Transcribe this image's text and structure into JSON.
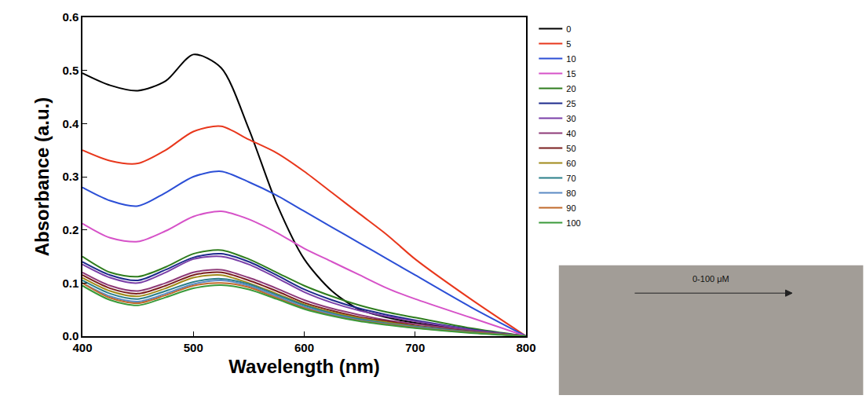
{
  "chart_data": {
    "type": "line",
    "x_label": "Wavelength (nm)",
    "y_label": "Absorbance (a.u.)",
    "x": [
      400,
      425,
      450,
      475,
      500,
      525,
      550,
      575,
      600,
      625,
      650,
      675,
      700,
      750,
      800
    ],
    "series": [
      {
        "name": "0",
        "color": "#000000",
        "values": [
          0.495,
          0.472,
          0.462,
          0.48,
          0.53,
          0.505,
          0.39,
          0.25,
          0.145,
          0.085,
          0.05,
          0.035,
          0.025,
          0.012,
          0.0
        ]
      },
      {
        "name": "5",
        "color": "#e8371c",
        "values": [
          0.35,
          0.33,
          0.325,
          0.35,
          0.385,
          0.395,
          0.37,
          0.345,
          0.31,
          0.27,
          0.23,
          0.19,
          0.145,
          0.07,
          0.0
        ]
      },
      {
        "name": "10",
        "color": "#2c4fd6",
        "values": [
          0.28,
          0.255,
          0.245,
          0.27,
          0.3,
          0.31,
          0.29,
          0.265,
          0.235,
          0.205,
          0.175,
          0.145,
          0.115,
          0.055,
          0.0
        ]
      },
      {
        "name": "15",
        "color": "#d652c8",
        "values": [
          0.212,
          0.185,
          0.178,
          0.198,
          0.225,
          0.235,
          0.22,
          0.195,
          0.165,
          0.14,
          0.115,
          0.09,
          0.07,
          0.035,
          0.0
        ]
      },
      {
        "name": "20",
        "color": "#2f7d1e",
        "values": [
          0.15,
          0.12,
          0.112,
          0.13,
          0.155,
          0.162,
          0.145,
          0.12,
          0.095,
          0.075,
          0.058,
          0.045,
          0.035,
          0.015,
          0.0
        ]
      },
      {
        "name": "25",
        "color": "#1d2a8c",
        "values": [
          0.14,
          0.115,
          0.105,
          0.125,
          0.148,
          0.155,
          0.14,
          0.115,
          0.088,
          0.068,
          0.052,
          0.04,
          0.03,
          0.013,
          0.0
        ]
      },
      {
        "name": "30",
        "color": "#7a3fa8",
        "values": [
          0.135,
          0.11,
          0.1,
          0.12,
          0.145,
          0.15,
          0.135,
          0.11,
          0.083,
          0.063,
          0.048,
          0.037,
          0.028,
          0.012,
          0.0
        ]
      },
      {
        "name": "40",
        "color": "#8e3a78",
        "values": [
          0.12,
          0.095,
          0.085,
          0.1,
          0.12,
          0.125,
          0.11,
          0.09,
          0.068,
          0.052,
          0.04,
          0.03,
          0.023,
          0.01,
          0.0
        ]
      },
      {
        "name": "50",
        "color": "#7a1f1f",
        "values": [
          0.115,
          0.09,
          0.08,
          0.095,
          0.115,
          0.12,
          0.105,
          0.085,
          0.063,
          0.048,
          0.036,
          0.028,
          0.02,
          0.009,
          0.0
        ]
      },
      {
        "name": "60",
        "color": "#a08a1a",
        "values": [
          0.11,
          0.085,
          0.075,
          0.09,
          0.11,
          0.115,
          0.1,
          0.08,
          0.06,
          0.045,
          0.034,
          0.026,
          0.019,
          0.008,
          0.0
        ]
      },
      {
        "name": "70",
        "color": "#2a7f8a",
        "values": [
          0.105,
          0.08,
          0.07,
          0.085,
          0.102,
          0.108,
          0.098,
          0.078,
          0.058,
          0.043,
          0.032,
          0.024,
          0.018,
          0.008,
          0.0
        ]
      },
      {
        "name": "80",
        "color": "#5a8ac4",
        "values": [
          0.1,
          0.075,
          0.065,
          0.08,
          0.098,
          0.105,
          0.095,
          0.075,
          0.055,
          0.041,
          0.03,
          0.023,
          0.017,
          0.007,
          0.0
        ]
      },
      {
        "name": "90",
        "color": "#c0682a",
        "values": [
          0.1,
          0.072,
          0.062,
          0.077,
          0.095,
          0.1,
          0.092,
          0.072,
          0.053,
          0.039,
          0.029,
          0.022,
          0.016,
          0.007,
          0.0
        ]
      },
      {
        "name": "100",
        "color": "#3a9a3a",
        "values": [
          0.095,
          0.068,
          0.058,
          0.073,
          0.09,
          0.096,
          0.088,
          0.07,
          0.051,
          0.038,
          0.028,
          0.021,
          0.015,
          0.006,
          0.0
        ]
      }
    ],
    "xlim": [
      400,
      800
    ],
    "ylim": [
      0,
      0.6
    ],
    "xticks": [
      400,
      500,
      600,
      700,
      800
    ],
    "yticks": [
      {
        "value": 0,
        "label": "0.0"
      },
      0.1,
      0.2,
      0.3,
      0.4,
      0.5,
      0.6
    ],
    "grid": false,
    "legend": "right",
    "annotations": [
      {
        "text": "0-100 μM"
      }
    ]
  }
}
